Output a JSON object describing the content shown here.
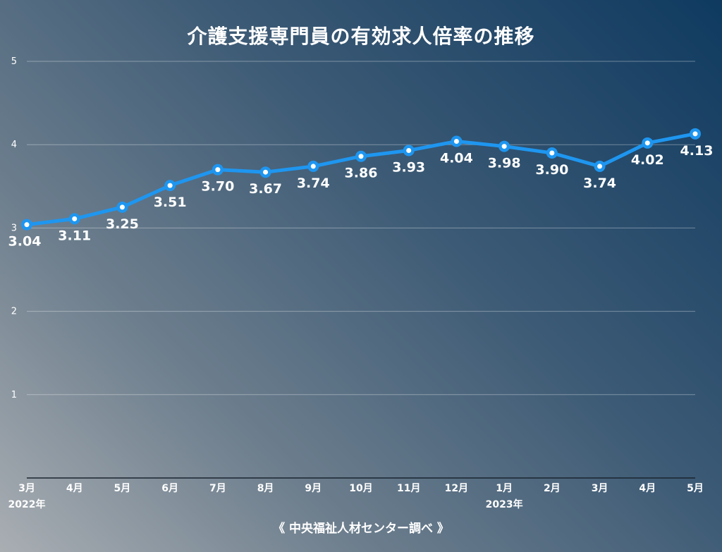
{
  "chart_data": {
    "type": "line",
    "title": "介護支援専門員の有効求人倍率の推移",
    "source": "《 中央福祉人材センター調べ 》",
    "categories": [
      "3月",
      "4月",
      "5月",
      "6月",
      "7月",
      "8月",
      "9月",
      "10月",
      "11月",
      "12月",
      "1月",
      "2月",
      "3月",
      "4月",
      "5月"
    ],
    "year_labels": [
      {
        "index": 0,
        "label": "2022年"
      },
      {
        "index": 10,
        "label": "2023年"
      }
    ],
    "series": [
      {
        "values": [
          3.04,
          3.11,
          3.25,
          3.51,
          3.7,
          3.67,
          3.74,
          3.86,
          3.93,
          4.04,
          3.98,
          3.9,
          3.74,
          4.02,
          4.13
        ],
        "data_labels": [
          "3.04",
          "3.11",
          "3.25",
          "3.51",
          "3.70",
          "3.67",
          "3.74",
          "3.86",
          "3.93",
          "4.04",
          "3.98",
          "3.90",
          "3.74",
          "4.02",
          "4.13"
        ],
        "color": "#1e96f0"
      }
    ],
    "ylim": [
      0,
      5
    ],
    "yticks": [
      1,
      2,
      3,
      4,
      5
    ],
    "grid": true,
    "legend": "none",
    "xlabel": "",
    "ylabel": ""
  }
}
